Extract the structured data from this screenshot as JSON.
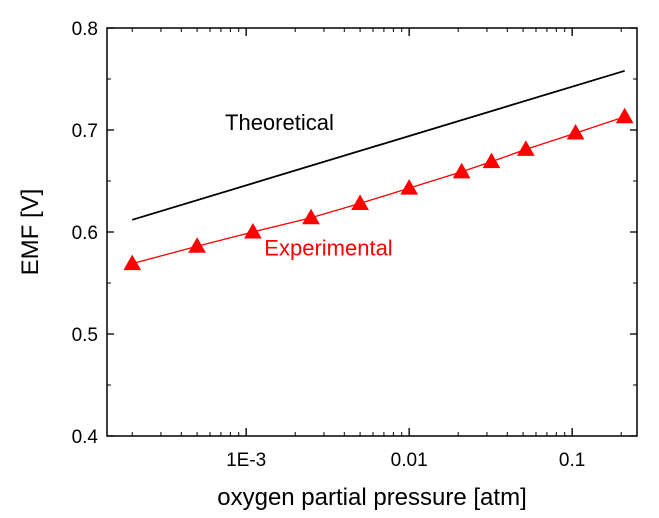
{
  "chart_data": {
    "type": "line",
    "xlabel": "oxygen partial pressure [atm]",
    "ylabel": "EMF [V]",
    "xscale": "log",
    "xlim": [
      0.00014,
      0.25
    ],
    "ylim": [
      0.4,
      0.8
    ],
    "grid": false,
    "x_ticks": [
      {
        "value": 0.001,
        "label": "1E-3"
      },
      {
        "value": 0.01,
        "label": "0.01"
      },
      {
        "value": 0.1,
        "label": "0.1"
      }
    ],
    "y_ticks": [
      {
        "value": 0.4,
        "label": "0.4"
      },
      {
        "value": 0.5,
        "label": "0.5"
      },
      {
        "value": 0.6,
        "label": "0.6"
      },
      {
        "value": 0.7,
        "label": "0.7"
      },
      {
        "value": 0.8,
        "label": "0.8"
      }
    ],
    "series": [
      {
        "label": "Theoretical",
        "color": "#000000",
        "marker": "none",
        "x": [
          0.0002,
          0.21
        ],
        "y": [
          0.612,
          0.758
        ]
      },
      {
        "label": "Experimental",
        "color": "#ff0000",
        "marker": "triangle",
        "x": [
          0.0002,
          0.0005,
          0.0011,
          0.0025,
          0.005,
          0.01,
          0.021,
          0.032,
          0.052,
          0.105,
          0.21
        ],
        "y": [
          0.569,
          0.586,
          0.6,
          0.614,
          0.628,
          0.643,
          0.659,
          0.669,
          0.681,
          0.697,
          0.713
        ]
      }
    ],
    "annotations": [
      {
        "text": "Theoretical",
        "color": "#000000",
        "x": 0.0016,
        "y": 0.7
      },
      {
        "text": "Experimental",
        "color": "#ff0000",
        "x": 0.0032,
        "y": 0.577
      }
    ]
  }
}
